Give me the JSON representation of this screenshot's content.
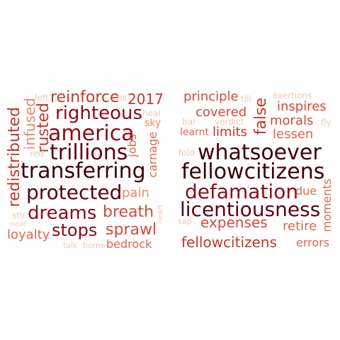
{
  "clouds": [
    {
      "name": "left",
      "words": [
        {
          "text": "reinforce",
          "color": "#c0392b"
        },
        {
          "text": "fill",
          "color": "#f2c9b5"
        },
        {
          "text": "2017",
          "color": "#c0392b"
        },
        {
          "text": "left",
          "color": "#f2c9b5"
        },
        {
          "text": "righteous",
          "color": "#8b0a1a"
        },
        {
          "text": "heal",
          "color": "#f2c9b5"
        },
        {
          "text": "sky",
          "color": "#e8896b"
        },
        {
          "text": "america",
          "color": "#8b0a1a"
        },
        {
          "text": "infused",
          "color": "#e8896b"
        },
        {
          "text": "rusted",
          "color": "#c0392b"
        },
        {
          "text": "trillions",
          "color": "#5c0011"
        },
        {
          "text": "jobs",
          "color": "#e0684f"
        },
        {
          "text": "carnage",
          "color": "#e0684f"
        },
        {
          "text": "red",
          "color": "#f2c9b5"
        },
        {
          "text": "redistributed",
          "color": "#c0392b"
        },
        {
          "text": "transferring",
          "color": "#3d0008"
        },
        {
          "text": "protected",
          "color": "#5c0011"
        },
        {
          "text": "pain",
          "color": "#e8896b"
        },
        {
          "text": "dreams",
          "color": "#8b0a1a"
        },
        {
          "text": "breath",
          "color": "#d24a3a"
        },
        {
          "text": "stir",
          "color": "#f2c9b5"
        },
        {
          "text": "near",
          "color": "#f2c9b5"
        },
        {
          "text": "heart",
          "color": "#f2c9b5"
        },
        {
          "text": "loyalty",
          "color": "#e0684f"
        },
        {
          "text": "stops",
          "color": "#8b0a1a"
        },
        {
          "text": "sprawl",
          "color": "#d24a3a"
        },
        {
          "text": "talk",
          "color": "#f2c9b5"
        },
        {
          "text": "borne",
          "color": "#f2c9b5"
        },
        {
          "text": "bedrock",
          "color": "#e0684f"
        }
      ]
    },
    {
      "name": "right",
      "words": [
        {
          "text": "principle",
          "color": "#d24a3a"
        },
        {
          "text": "till",
          "color": "#f2c9b5"
        },
        {
          "text": "exertions",
          "color": "#f2c9b5"
        },
        {
          "text": "false",
          "color": "#c0392b"
        },
        {
          "text": "inspires",
          "color": "#d24a3a"
        },
        {
          "text": "covered",
          "color": "#d24a3a"
        },
        {
          "text": "bar",
          "color": "#f2c9b5"
        },
        {
          "text": "verdict",
          "color": "#f2c9b5"
        },
        {
          "text": "morals",
          "color": "#d24a3a"
        },
        {
          "text": "fly",
          "color": "#f2c9b5"
        },
        {
          "text": "learnt",
          "color": "#e0684f"
        },
        {
          "text": "limits",
          "color": "#c0392b"
        },
        {
          "text": "lessen",
          "color": "#e0684f"
        },
        {
          "text": "fold",
          "color": "#f2c9b5"
        },
        {
          "text": "whatsoever",
          "color": "#3d0008"
        },
        {
          "text": "fellowcitizens",
          "color": "#3d0008"
        },
        {
          "text": "defamation",
          "color": "#8b0a1a"
        },
        {
          "text": "due",
          "color": "#e0684f"
        },
        {
          "text": "moments",
          "color": "#e0684f"
        },
        {
          "text": "licentiousness",
          "color": "#5c0011"
        },
        {
          "text": "sap",
          "color": "#f2c9b5"
        },
        {
          "text": "expenses",
          "color": "#d24a3a"
        },
        {
          "text": "retire",
          "color": "#e0684f"
        },
        {
          "text": "fellowcitizens",
          "color": "#c0392b"
        },
        {
          "text": "errors",
          "color": "#e0684f"
        }
      ]
    }
  ]
}
